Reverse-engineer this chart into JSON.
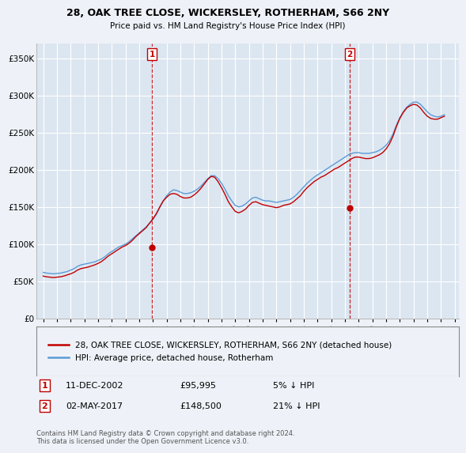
{
  "title": "28, OAK TREE CLOSE, WICKERSLEY, ROTHERHAM, S66 2NY",
  "subtitle": "Price paid vs. HM Land Registry's House Price Index (HPI)",
  "legend_line1": "28, OAK TREE CLOSE, WICKERSLEY, ROTHERHAM, S66 2NY (detached house)",
  "legend_line2": "HPI: Average price, detached house, Rotherham",
  "footer": "Contains HM Land Registry data © Crown copyright and database right 2024.\nThis data is licensed under the Open Government Licence v3.0.",
  "transaction1_label": "1",
  "transaction1_date": "11-DEC-2002",
  "transaction1_price": "£95,995",
  "transaction1_hpi": "5% ↓ HPI",
  "transaction2_label": "2",
  "transaction2_date": "02-MAY-2017",
  "transaction2_price": "£148,500",
  "transaction2_hpi": "21% ↓ HPI",
  "hpi_color": "#5b9bd5",
  "price_color": "#c00000",
  "vline_color": "#c00000",
  "marker_color": "#c00000",
  "background_color": "#eef2f8",
  "plot_bg_color": "#dce6f1",
  "grid_color": "#ffffff",
  "ylim_min": 0,
  "ylim_max": 370000,
  "yticks": [
    0,
    50000,
    100000,
    150000,
    200000,
    250000,
    300000,
    350000
  ],
  "ytick_labels": [
    "£0",
    "£50K",
    "£100K",
    "£150K",
    "£200K",
    "£250K",
    "£300K",
    "£350K"
  ],
  "transaction1_x": 2002.94,
  "transaction1_y": 95995,
  "transaction2_x": 2017.34,
  "transaction2_y": 148500,
  "xlim_min": 1994.5,
  "xlim_max": 2025.3,
  "hpi_data_x": [
    1995.0,
    1995.25,
    1995.5,
    1995.75,
    1996.0,
    1996.25,
    1996.5,
    1996.75,
    1997.0,
    1997.25,
    1997.5,
    1997.75,
    1998.0,
    1998.25,
    1998.5,
    1998.75,
    1999.0,
    1999.25,
    1999.5,
    1999.75,
    2000.0,
    2000.25,
    2000.5,
    2000.75,
    2001.0,
    2001.25,
    2001.5,
    2001.75,
    2002.0,
    2002.25,
    2002.5,
    2002.75,
    2003.0,
    2003.25,
    2003.5,
    2003.75,
    2004.0,
    2004.25,
    2004.5,
    2004.75,
    2005.0,
    2005.25,
    2005.5,
    2005.75,
    2006.0,
    2006.25,
    2006.5,
    2006.75,
    2007.0,
    2007.25,
    2007.5,
    2007.75,
    2008.0,
    2008.25,
    2008.5,
    2008.75,
    2009.0,
    2009.25,
    2009.5,
    2009.75,
    2010.0,
    2010.25,
    2010.5,
    2010.75,
    2011.0,
    2011.25,
    2011.5,
    2011.75,
    2012.0,
    2012.25,
    2012.5,
    2012.75,
    2013.0,
    2013.25,
    2013.5,
    2013.75,
    2014.0,
    2014.25,
    2014.5,
    2014.75,
    2015.0,
    2015.25,
    2015.5,
    2015.75,
    2016.0,
    2016.25,
    2016.5,
    2016.75,
    2017.0,
    2017.25,
    2017.5,
    2017.75,
    2018.0,
    2018.25,
    2018.5,
    2018.75,
    2019.0,
    2019.25,
    2019.5,
    2019.75,
    2020.0,
    2020.25,
    2020.5,
    2020.75,
    2021.0,
    2021.25,
    2021.5,
    2021.75,
    2022.0,
    2022.25,
    2022.5,
    2022.75,
    2023.0,
    2023.25,
    2023.5,
    2023.75,
    2024.0,
    2024.25
  ],
  "hpi_data_y": [
    62000,
    61000,
    60500,
    60000,
    60500,
    61000,
    62000,
    63000,
    65000,
    67000,
    70000,
    72000,
    73000,
    74000,
    75000,
    76000,
    78000,
    80000,
    83000,
    87000,
    90000,
    93000,
    96000,
    98000,
    100000,
    103000,
    107000,
    111000,
    115000,
    119000,
    123000,
    128000,
    133000,
    140000,
    149000,
    158000,
    165000,
    170000,
    173000,
    172000,
    170000,
    168000,
    168000,
    169000,
    171000,
    174000,
    178000,
    183000,
    188000,
    192000,
    192000,
    188000,
    182000,
    174000,
    165000,
    158000,
    152000,
    150000,
    151000,
    154000,
    158000,
    162000,
    163000,
    161000,
    159000,
    158000,
    158000,
    157000,
    156000,
    157000,
    158000,
    159000,
    160000,
    163000,
    167000,
    172000,
    177000,
    182000,
    186000,
    190000,
    193000,
    196000,
    199000,
    202000,
    205000,
    208000,
    211000,
    214000,
    217000,
    220000,
    222000,
    223000,
    223000,
    222000,
    222000,
    222000,
    223000,
    224000,
    226000,
    229000,
    233000,
    239000,
    248000,
    260000,
    270000,
    278000,
    284000,
    288000,
    291000,
    291000,
    288000,
    283000,
    278000,
    274000,
    272000,
    271000,
    272000,
    274000
  ],
  "price_data_x": [
    1995.0,
    1995.25,
    1995.5,
    1995.75,
    1996.0,
    1996.25,
    1996.5,
    1996.75,
    1997.0,
    1997.25,
    1997.5,
    1997.75,
    1998.0,
    1998.25,
    1998.5,
    1998.75,
    1999.0,
    1999.25,
    1999.5,
    1999.75,
    2000.0,
    2000.25,
    2000.5,
    2000.75,
    2001.0,
    2001.25,
    2001.5,
    2001.75,
    2002.0,
    2002.25,
    2002.5,
    2002.75,
    2003.0,
    2003.25,
    2003.5,
    2003.75,
    2004.0,
    2004.25,
    2004.5,
    2004.75,
    2005.0,
    2005.25,
    2005.5,
    2005.75,
    2006.0,
    2006.25,
    2006.5,
    2006.75,
    2007.0,
    2007.25,
    2007.5,
    2007.75,
    2008.0,
    2008.25,
    2008.5,
    2008.75,
    2009.0,
    2009.25,
    2009.5,
    2009.75,
    2010.0,
    2010.25,
    2010.5,
    2010.75,
    2011.0,
    2011.25,
    2011.5,
    2011.75,
    2012.0,
    2012.25,
    2012.5,
    2012.75,
    2013.0,
    2013.25,
    2013.5,
    2013.75,
    2014.0,
    2014.25,
    2014.5,
    2014.75,
    2015.0,
    2015.25,
    2015.5,
    2015.75,
    2016.0,
    2016.25,
    2016.5,
    2016.75,
    2017.0,
    2017.25,
    2017.5,
    2017.75,
    2018.0,
    2018.25,
    2018.5,
    2018.75,
    2019.0,
    2019.25,
    2019.5,
    2019.75,
    2020.0,
    2020.25,
    2020.5,
    2020.75,
    2021.0,
    2021.25,
    2021.5,
    2021.75,
    2022.0,
    2022.25,
    2022.5,
    2022.75,
    2023.0,
    2023.25,
    2023.5,
    2023.75,
    2024.0,
    2024.25
  ],
  "price_data_y": [
    57000,
    56000,
    55500,
    55000,
    55500,
    56000,
    57000,
    58500,
    60000,
    62000,
    65000,
    67000,
    68000,
    69000,
    70500,
    72000,
    74000,
    76500,
    80000,
    84000,
    87000,
    90000,
    93000,
    96000,
    98000,
    101000,
    105000,
    110000,
    114000,
    118000,
    122000,
    128000,
    134000,
    141000,
    150000,
    158000,
    163000,
    167000,
    168000,
    167000,
    164000,
    162000,
    162000,
    163000,
    166000,
    170000,
    175000,
    181000,
    187000,
    191000,
    190000,
    184000,
    176000,
    167000,
    157000,
    150000,
    144000,
    142000,
    144000,
    147000,
    152000,
    156000,
    157000,
    155000,
    153000,
    152000,
    151000,
    150000,
    149000,
    150000,
    152000,
    153000,
    154000,
    157000,
    161000,
    165000,
    171000,
    176000,
    180000,
    184000,
    187000,
    190000,
    192000,
    195000,
    198000,
    201000,
    203000,
    206000,
    209000,
    212000,
    215000,
    217000,
    217000,
    216000,
    215000,
    215000,
    216000,
    218000,
    220000,
    223000,
    228000,
    235000,
    245000,
    258000,
    269000,
    277000,
    283000,
    286000,
    288000,
    287000,
    283000,
    277000,
    272000,
    269000,
    268000,
    268000,
    270000,
    272000
  ]
}
